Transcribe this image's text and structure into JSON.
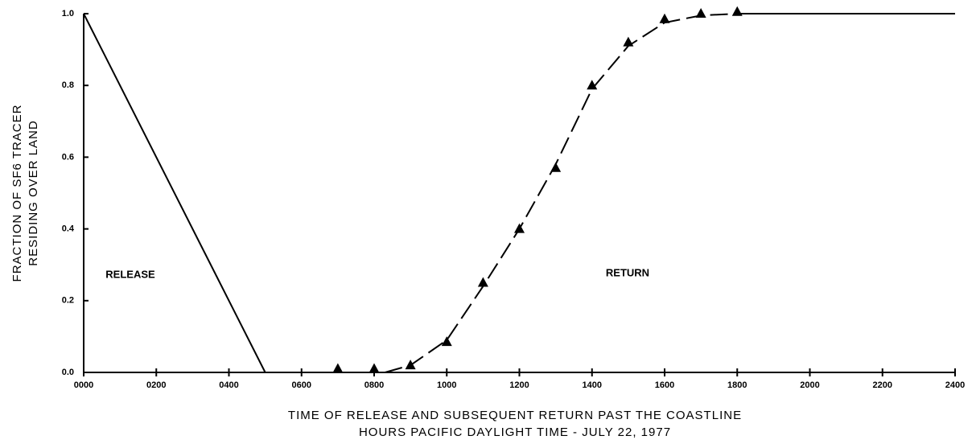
{
  "chart_data": {
    "type": "line",
    "xlabel": [
      "TIME OF RELEASE AND SUBSEQUENT RETURN PAST THE COASTLINE",
      "HOURS PACIFIC DAYLIGHT TIME - JULY 22, 1977"
    ],
    "ylabel": [
      "FRACTION OF SF6 TRACER",
      "RESIDING OVER LAND"
    ],
    "annotations": [
      "RELEASE",
      "RETURN"
    ],
    "xlim": [
      0,
      2400
    ],
    "ylim": [
      0,
      1.0
    ],
    "xticks": [
      {
        "value": 0,
        "label": "0000"
      },
      {
        "value": 200,
        "label": "0200"
      },
      {
        "value": 400,
        "label": "0400"
      },
      {
        "value": 600,
        "label": "0600"
      },
      {
        "value": 800,
        "label": "0800"
      },
      1000,
      1200,
      1400,
      1600,
      1800,
      2000,
      2200,
      2400
    ],
    "yticks": [
      {
        "value": 0,
        "label": "0.0"
      },
      {
        "value": 0.2,
        "label": "0.2"
      },
      {
        "value": 0.4,
        "label": "0.4"
      },
      {
        "value": 0.6,
        "label": "0.6"
      },
      {
        "value": 0.8,
        "label": "0.8"
      },
      {
        "value": 1.0,
        "label": "1.0"
      }
    ],
    "color": "#000000",
    "series": [
      {
        "style": "solid",
        "x": [
          0,
          500
        ],
        "values": [
          1.0,
          0
        ]
      },
      {
        "style": "dashed",
        "x": [
          830,
          900,
          1000,
          1100,
          1200,
          1300,
          1400,
          1500,
          1600,
          1700,
          1800
        ],
        "values": [
          0,
          0.02,
          0.09,
          0.24,
          0.4,
          0.58,
          0.79,
          0.91,
          0.975,
          0.995,
          1.0
        ]
      },
      {
        "style": "solid",
        "x": [
          1800,
          2400
        ],
        "values": [
          1.0,
          1.0
        ]
      },
      {
        "style": "triangle",
        "x": [
          700,
          800,
          900,
          1000,
          1100,
          1200,
          1300,
          1400,
          1500,
          1600,
          1700,
          1800
        ],
        "values": [
          0.01,
          0.01,
          0.02,
          0.085,
          0.25,
          0.4,
          0.57,
          0.8,
          0.92,
          0.985,
          1.0,
          1.005
        ]
      }
    ]
  }
}
